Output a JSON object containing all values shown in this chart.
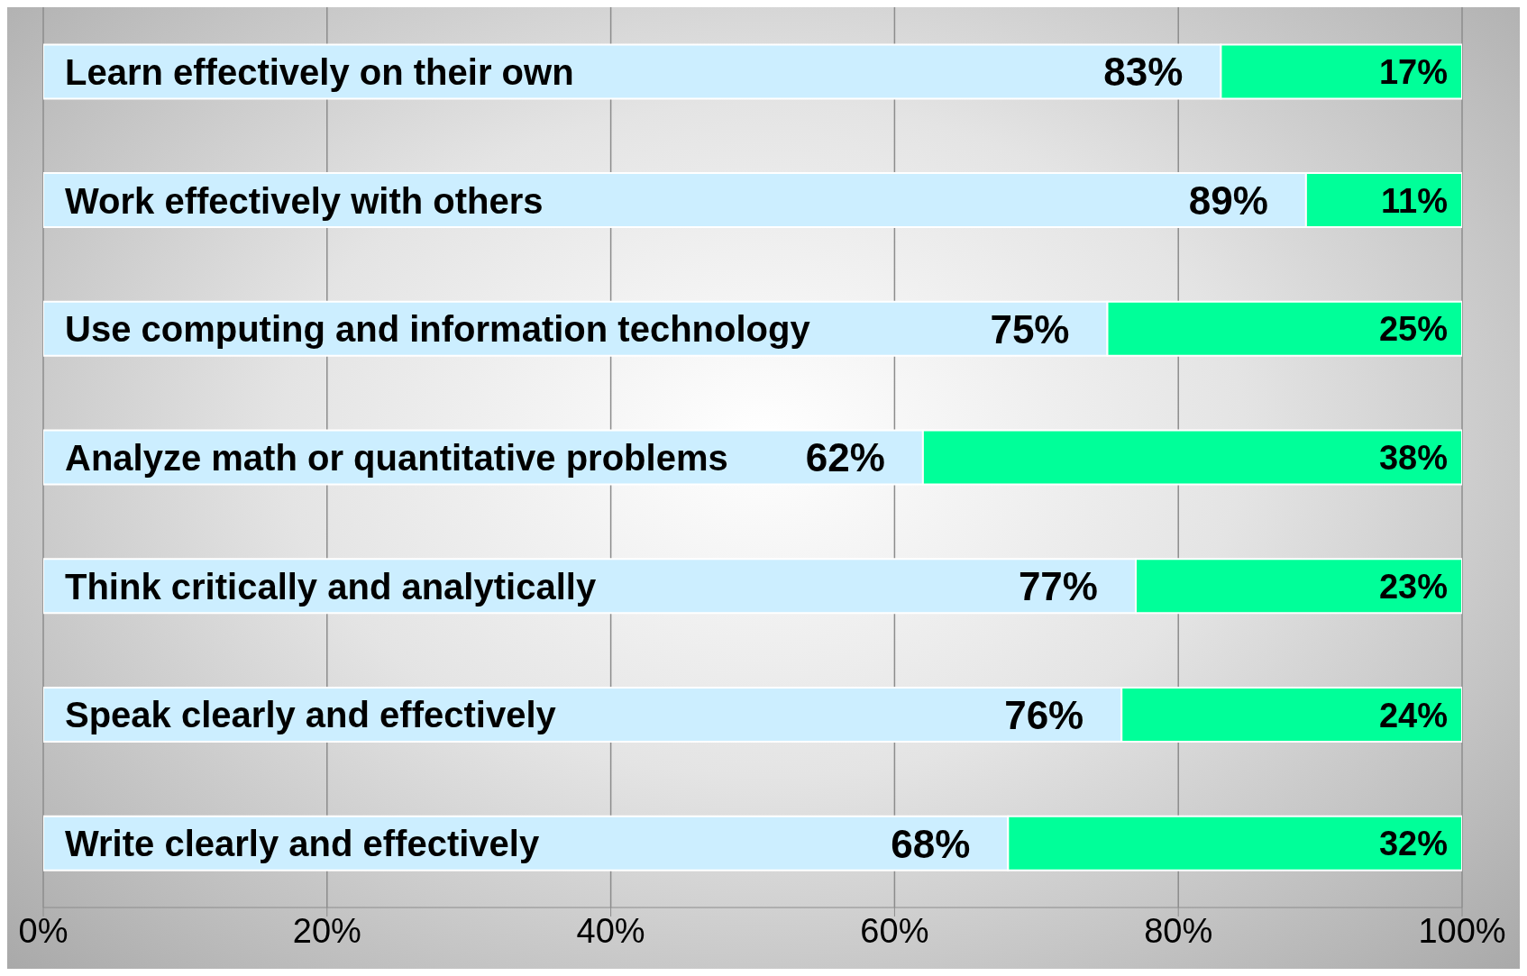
{
  "chart_data": {
    "type": "bar",
    "orientation": "horizontal",
    "stacked": true,
    "categories": [
      "Learn effectively on their own",
      "Work effectively with others",
      "Use computing and information technology",
      "Analyze math or quantitative problems",
      "Think critically and analytically",
      "Speak clearly and effectively",
      "Write clearly and effectively"
    ],
    "series": [
      {
        "color": "#cceeff",
        "values": [
          83,
          89,
          75,
          62,
          77,
          76,
          68
        ],
        "value_labels": [
          "83%",
          "89%",
          "75%",
          "62%",
          "77%",
          "76%",
          "68%"
        ]
      },
      {
        "color": "#00ff99",
        "values": [
          17,
          11,
          25,
          38,
          23,
          24,
          32
        ],
        "value_labels": [
          "17%",
          "11%",
          "25%",
          "38%",
          "23%",
          "24%",
          "32%"
        ]
      }
    ],
    "xlim": [
      0,
      100
    ],
    "xticks": [
      {
        "value": 0,
        "label": "0%"
      },
      {
        "value": 20,
        "label": "20%"
      },
      {
        "value": 40,
        "label": "40%"
      },
      {
        "value": 60,
        "label": "60%"
      },
      {
        "value": 80,
        "label": "80%"
      },
      {
        "value": 100,
        "label": "100%"
      }
    ],
    "grid": "x",
    "legend": false
  }
}
